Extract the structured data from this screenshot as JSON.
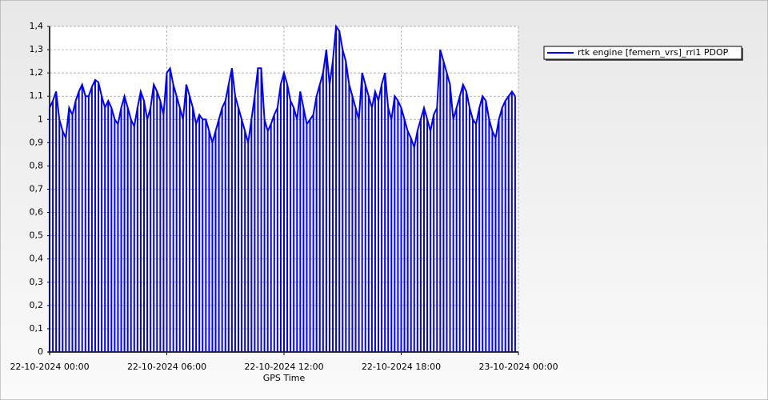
{
  "chart_data": {
    "type": "line",
    "xlabel": "GPS Time",
    "x": [
      "22-10-2024 00:00",
      "22-10-2024 00:10",
      "22-10-2024 00:20",
      "22-10-2024 00:30",
      "22-10-2024 00:40",
      "22-10-2024 00:50",
      "22-10-2024 01:00",
      "22-10-2024 01:10",
      "22-10-2024 01:20",
      "22-10-2024 01:30",
      "22-10-2024 01:40",
      "22-10-2024 01:50",
      "22-10-2024 02:00",
      "22-10-2024 02:10",
      "22-10-2024 02:20",
      "22-10-2024 02:30",
      "22-10-2024 02:40",
      "22-10-2024 02:50",
      "22-10-2024 03:00",
      "22-10-2024 03:10",
      "22-10-2024 03:20",
      "22-10-2024 03:30",
      "22-10-2024 03:40",
      "22-10-2024 03:50",
      "22-10-2024 04:00",
      "22-10-2024 04:10",
      "22-10-2024 04:20",
      "22-10-2024 04:30",
      "22-10-2024 04:40",
      "22-10-2024 04:50",
      "22-10-2024 05:00",
      "22-10-2024 05:10",
      "22-10-2024 05:20",
      "22-10-2024 05:30",
      "22-10-2024 05:40",
      "22-10-2024 05:50",
      "22-10-2024 06:00",
      "22-10-2024 06:10",
      "22-10-2024 06:20",
      "22-10-2024 06:30",
      "22-10-2024 06:40",
      "22-10-2024 06:50",
      "22-10-2024 07:00",
      "22-10-2024 07:10",
      "22-10-2024 07:20",
      "22-10-2024 07:30",
      "22-10-2024 07:40",
      "22-10-2024 07:50",
      "22-10-2024 08:00",
      "22-10-2024 08:10",
      "22-10-2024 08:20",
      "22-10-2024 08:30",
      "22-10-2024 08:40",
      "22-10-2024 08:50",
      "22-10-2024 09:00",
      "22-10-2024 09:10",
      "22-10-2024 09:20",
      "22-10-2024 09:30",
      "22-10-2024 09:40",
      "22-10-2024 09:50",
      "22-10-2024 10:00",
      "22-10-2024 10:10",
      "22-10-2024 10:20",
      "22-10-2024 10:30",
      "22-10-2024 10:40",
      "22-10-2024 10:50",
      "22-10-2024 11:00",
      "22-10-2024 11:10",
      "22-10-2024 11:20",
      "22-10-2024 11:30",
      "22-10-2024 11:40",
      "22-10-2024 11:50",
      "22-10-2024 12:00",
      "22-10-2024 12:10",
      "22-10-2024 12:20",
      "22-10-2024 12:30",
      "22-10-2024 12:40",
      "22-10-2024 12:50",
      "22-10-2024 13:00",
      "22-10-2024 13:10",
      "22-10-2024 13:20",
      "22-10-2024 13:30",
      "22-10-2024 13:40",
      "22-10-2024 13:50",
      "22-10-2024 14:00",
      "22-10-2024 14:10",
      "22-10-2024 14:20",
      "22-10-2024 14:30",
      "22-10-2024 14:40",
      "22-10-2024 14:50",
      "22-10-2024 15:00",
      "22-10-2024 15:10",
      "22-10-2024 15:20",
      "22-10-2024 15:30",
      "22-10-2024 15:40",
      "22-10-2024 15:50",
      "22-10-2024 16:00",
      "22-10-2024 16:10",
      "22-10-2024 16:20",
      "22-10-2024 16:30",
      "22-10-2024 16:40",
      "22-10-2024 16:50",
      "22-10-2024 17:00",
      "22-10-2024 17:10",
      "22-10-2024 17:20",
      "22-10-2024 17:30",
      "22-10-2024 17:40",
      "22-10-2024 17:50",
      "22-10-2024 18:00",
      "22-10-2024 18:10",
      "22-10-2024 18:20",
      "22-10-2024 18:30",
      "22-10-2024 18:40",
      "22-10-2024 18:50",
      "22-10-2024 19:00",
      "22-10-2024 19:10",
      "22-10-2024 19:20",
      "22-10-2024 19:30",
      "22-10-2024 19:40",
      "22-10-2024 19:50",
      "22-10-2024 20:00",
      "22-10-2024 20:10",
      "22-10-2024 20:20",
      "22-10-2024 20:30",
      "22-10-2024 20:40",
      "22-10-2024 20:50",
      "22-10-2024 21:00",
      "22-10-2024 21:10",
      "22-10-2024 21:20",
      "22-10-2024 21:30",
      "22-10-2024 21:40",
      "22-10-2024 21:50",
      "22-10-2024 22:00",
      "22-10-2024 22:10",
      "22-10-2024 22:20",
      "22-10-2024 22:30",
      "22-10-2024 22:40",
      "22-10-2024 22:50",
      "22-10-2024 23:00",
      "22-10-2024 23:10",
      "22-10-2024 23:20",
      "22-10-2024 23:30",
      "22-10-2024 23:40",
      "22-10-2024 23:50"
    ],
    "series": [
      {
        "name": "rtk engine [femern_vrs]_rri1 PDOP",
        "color": "#0000ff",
        "values": [
          1.05,
          1.08,
          1.12,
          1.0,
          0.95,
          0.92,
          1.05,
          1.02,
          1.08,
          1.12,
          1.15,
          1.1,
          1.1,
          1.14,
          1.17,
          1.16,
          1.1,
          1.05,
          1.08,
          1.05,
          1.0,
          0.98,
          1.05,
          1.1,
          1.05,
          1.0,
          0.97,
          1.05,
          1.12,
          1.08,
          1.0,
          1.05,
          1.15,
          1.12,
          1.08,
          1.02,
          1.2,
          1.22,
          1.15,
          1.1,
          1.05,
          1.0,
          1.15,
          1.1,
          1.05,
          0.98,
          1.02,
          1.0,
          1.0,
          0.95,
          0.9,
          0.95,
          1.0,
          1.05,
          1.08,
          1.15,
          1.22,
          1.1,
          1.05,
          1.0,
          0.95,
          0.9,
          1.0,
          1.1,
          1.22,
          1.22,
          1.0,
          0.95,
          0.98,
          1.02,
          1.05,
          1.15,
          1.2,
          1.15,
          1.08,
          1.05,
          1.0,
          1.12,
          1.05,
          0.98,
          1.0,
          1.02,
          1.1,
          1.15,
          1.2,
          1.3,
          1.15,
          1.25,
          1.4,
          1.38,
          1.3,
          1.25,
          1.15,
          1.1,
          1.05,
          1.0,
          1.2,
          1.15,
          1.1,
          1.05,
          1.12,
          1.08,
          1.15,
          1.2,
          1.05,
          1.0,
          1.1,
          1.08,
          1.05,
          1.0,
          0.95,
          0.92,
          0.88,
          0.95,
          1.0,
          1.05,
          1.0,
          0.95,
          1.02,
          1.05,
          1.3,
          1.25,
          1.2,
          1.15,
          1.0,
          1.05,
          1.1,
          1.15,
          1.12,
          1.05,
          1.0,
          0.98,
          1.05,
          1.1,
          1.08,
          1.0,
          0.95,
          0.92,
          1.0,
          1.05,
          1.08,
          1.1,
          1.12,
          1.1
        ]
      }
    ],
    "xlim": [
      "22-10-2024 00:00",
      "23-10-2024 00:00"
    ],
    "xticks": [
      "22-10-2024 00:00",
      "22-10-2024 06:00",
      "22-10-2024 12:00",
      "22-10-2024 18:00",
      "23-10-2024 00:00"
    ],
    "ylim": [
      0,
      1.4
    ],
    "yticks": [
      0,
      {
        "value": 0.1,
        "label": "0,1"
      },
      {
        "value": 0.2,
        "label": "0,2"
      },
      {
        "value": 0.3,
        "label": "0,3"
      },
      {
        "value": 0.4,
        "label": "0,4"
      },
      {
        "value": 0.5,
        "label": "0,5"
      },
      {
        "value": 0.6,
        "label": "0,6"
      },
      {
        "value": 0.7,
        "label": "0,7"
      },
      {
        "value": 0.8,
        "label": "0,8"
      },
      {
        "value": 0.9,
        "label": "0,9"
      },
      1,
      {
        "value": 1.1,
        "label": "1,1"
      },
      {
        "value": 1.2,
        "label": "1,2"
      },
      {
        "value": 1.3,
        "label": "1,3"
      },
      {
        "value": 1.4,
        "label": "1,4"
      }
    ],
    "grid": true,
    "legend": "right"
  }
}
